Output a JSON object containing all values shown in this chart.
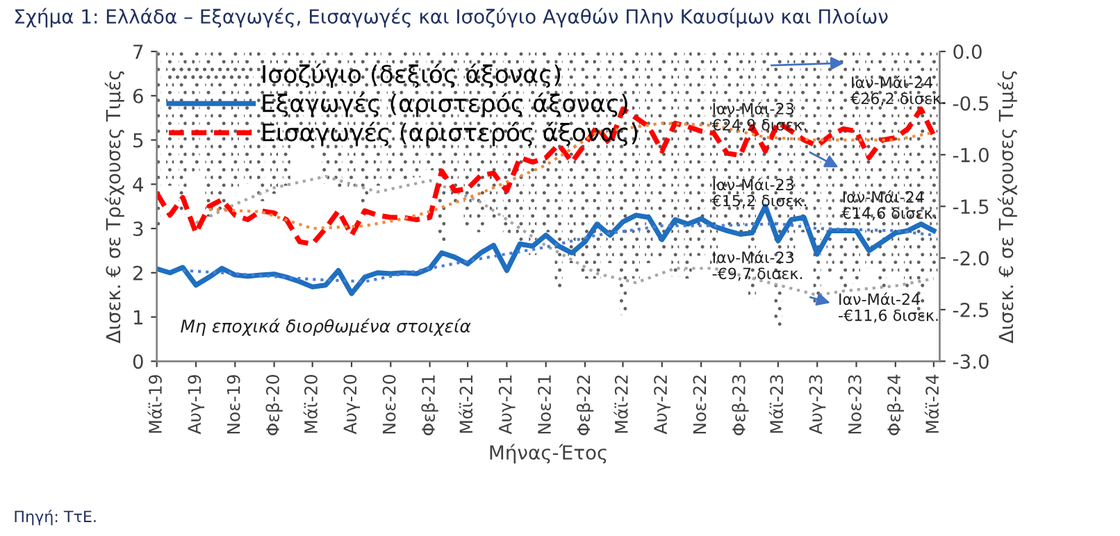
{
  "chart_data": {
    "type": "line",
    "title": "Σχήμα 1: Ελλάδα – Εξαγωγές, Εισαγωγές και Ισοζύγιο Αγαθών Πλην Καυσίμων και Πλοίων",
    "xlabel": "Μήνας-Έτος",
    "ylabel": "Δισεκ. € σε Τρέχουσες Τιμές",
    "y2label": "Δισεκ. € σε Τρέχουσες Τιμές",
    "x": [
      "2019-05",
      "2019-06",
      "2019-07",
      "2019-08",
      "2019-09",
      "2019-10",
      "2019-11",
      "2019-12",
      "2020-01",
      "2020-02",
      "2020-03",
      "2020-04",
      "2020-05",
      "2020-06",
      "2020-07",
      "2020-08",
      "2020-09",
      "2020-10",
      "2020-11",
      "2020-12",
      "2021-01",
      "2021-02",
      "2021-03",
      "2021-04",
      "2021-05",
      "2021-06",
      "2021-07",
      "2021-08",
      "2021-09",
      "2021-10",
      "2021-11",
      "2021-12",
      "2022-01",
      "2022-02",
      "2022-03",
      "2022-04",
      "2022-05",
      "2022-06",
      "2022-07",
      "2022-08",
      "2022-09",
      "2022-10",
      "2022-11",
      "2022-12",
      "2023-01",
      "2023-02",
      "2023-03",
      "2023-04",
      "2023-05",
      "2023-06",
      "2023-07",
      "2023-08",
      "2023-09",
      "2023-10",
      "2023-11",
      "2023-12",
      "2024-01",
      "2024-02",
      "2024-03",
      "2024-04",
      "2024-05"
    ],
    "xlim": [
      "2019-05",
      "2024-05-15"
    ],
    "xticks": [
      {
        "value": "2019-05",
        "label": "Μάϊ-19"
      },
      {
        "value": "2019-08",
        "label": "Αυγ-19"
      },
      {
        "value": "2019-11",
        "label": "Νοε-19"
      },
      {
        "value": "2020-02",
        "label": "Φεβ-20"
      },
      {
        "value": "2020-05",
        "label": "Μάϊ-20"
      },
      {
        "value": "2020-08",
        "label": "Αυγ-20"
      },
      {
        "value": "2020-11",
        "label": "Νοε-20"
      },
      {
        "value": "2021-02",
        "label": "Φεβ-21"
      },
      {
        "value": "2021-05",
        "label": "Μάϊ-21"
      },
      {
        "value": "2021-08",
        "label": "Αυγ-21"
      },
      {
        "value": "2021-11",
        "label": "Νοε-21"
      },
      {
        "value": "2022-02",
        "label": "Φεβ-22"
      },
      {
        "value": "2022-05",
        "label": "Μάϊ-22"
      },
      {
        "value": "2022-08",
        "label": "Αυγ-22"
      },
      {
        "value": "2022-11",
        "label": "Νοε-22"
      },
      {
        "value": "2023-02",
        "label": "Φεβ-23"
      },
      {
        "value": "2023-05",
        "label": "Μάϊ-23"
      },
      {
        "value": "2023-08",
        "label": "Αυγ-23"
      },
      {
        "value": "2023-11",
        "label": "Νοε-23"
      },
      {
        "value": "2024-02",
        "label": "Φεβ-24"
      },
      {
        "value": "2024-05",
        "label": "Μάϊ-24"
      }
    ],
    "ylim": [
      0,
      7
    ],
    "yticks": [
      0,
      1,
      2,
      3,
      4,
      5,
      6,
      7
    ],
    "y2lim": [
      -3.0,
      0.0
    ],
    "y2ticks": [
      {
        "value": -3,
        "label": "-3.0"
      },
      {
        "value": -2.5,
        "label": "-2.5"
      },
      {
        "value": -2,
        "label": "-2.0"
      },
      {
        "value": -1.5,
        "label": "-1.5"
      },
      {
        "value": -1,
        "label": "-1.0"
      },
      {
        "value": -0.5,
        "label": "-0.5"
      },
      {
        "value": 0,
        "label": "0.0"
      }
    ],
    "legend": "top left",
    "grid": false,
    "annotations": [
      "Ιαν-Μάι-23\n€24,9 δισεκ.",
      "Ιαν-Μάι-24\n€26,2 δισεκ.",
      "Ιαν-Μάι-23\n€15,2 δισεκ.",
      "Ιαν-Μάι-24\n€14,6 δισεκ.",
      "Ιαν-Μάι-23\n-€9,7 δισεκ.",
      "Ιαν-Μάι-24\n-€11,6 δισεκ.",
      "Μη εποχικά διορθωμένα στοιχεία",
      "Πηγή: ΤτΕ."
    ],
    "series": [
      {
        "name": "Ισοζύγιο (δεξιός άξονας)",
        "type": "bar",
        "axis": "y2",
        "color": "#606060",
        "values": [
          -1.71,
          -1.3,
          -1.58,
          -1.18,
          -1.6,
          -1.55,
          -1.35,
          -1.28,
          -1.45,
          -1.38,
          -1.3,
          -0.9,
          -0.97,
          -1.28,
          -1.35,
          -1.32,
          -1.5,
          -1.3,
          -1.27,
          -1.25,
          -1.22,
          -1.15,
          -1.85,
          -1.5,
          -1.7,
          -1.75,
          -1.63,
          -1.8,
          -1.95,
          -1.97,
          -1.75,
          -2.3,
          -2.05,
          -2.2,
          -2.2,
          -2.05,
          -2.55,
          -2.2,
          -2.05,
          -2.0,
          -2.18,
          -2.2,
          -1.98,
          -2.1,
          -1.75,
          -1.78,
          -2.4,
          -1.25,
          -2.68,
          -2.0,
          -1.75,
          -2.45,
          -2.15,
          -2.3,
          -2.25,
          -2.1,
          -2.3,
          -2.15,
          -2.3,
          -2.6,
          -2.15
        ]
      },
      {
        "name": "Εξαγωγές (αριστερός άξονας)",
        "line_style": "solid",
        "color": "#1f6fc0",
        "values": [
          2.09,
          2.0,
          2.12,
          1.72,
          1.9,
          2.1,
          1.95,
          1.92,
          1.95,
          1.97,
          1.9,
          1.8,
          1.68,
          1.72,
          2.05,
          1.53,
          1.9,
          2.0,
          1.98,
          2.0,
          1.98,
          2.1,
          2.45,
          2.35,
          2.2,
          2.45,
          2.62,
          2.05,
          2.65,
          2.6,
          2.85,
          2.6,
          2.45,
          2.7,
          3.1,
          2.85,
          3.15,
          3.3,
          3.25,
          2.75,
          3.2,
          3.1,
          3.22,
          3.05,
          2.95,
          2.87,
          2.9,
          3.5,
          2.72,
          3.2,
          3.25,
          2.42,
          2.95,
          2.95,
          2.95,
          2.5,
          2.7,
          2.9,
          2.95,
          3.1,
          2.95
        ]
      },
      {
        "name": "Εισαγωγές (αριστερός άξονας)",
        "line_style": "dashed",
        "color": "#ff0000",
        "values": [
          3.8,
          3.3,
          3.7,
          2.9,
          3.5,
          3.65,
          3.3,
          3.2,
          3.4,
          3.35,
          3.2,
          2.7,
          2.65,
          3.0,
          3.4,
          2.85,
          3.4,
          3.3,
          3.25,
          3.25,
          3.2,
          3.25,
          4.3,
          3.85,
          3.9,
          4.2,
          4.25,
          3.85,
          4.6,
          4.5,
          4.6,
          4.9,
          4.5,
          4.9,
          5.3,
          4.9,
          5.7,
          5.5,
          5.3,
          4.75,
          5.38,
          5.3,
          5.2,
          5.15,
          4.7,
          4.65,
          5.3,
          4.75,
          5.4,
          5.2,
          5.0,
          4.87,
          5.1,
          5.25,
          5.2,
          4.6,
          5.0,
          5.05,
          5.25,
          5.7,
          5.1
        ]
      },
      {
        "line_style": "dotted",
        "axis": "y2",
        "color": "#a6a6a6",
        "x": [
          "2019-08",
          "2019-11",
          "2020-02",
          "2020-06",
          "2020-10",
          "2021-02",
          "2021-06",
          "2021-11",
          "2022-03",
          "2022-06",
          "2022-09",
          "2022-12",
          "2023-08",
          "2023-10",
          "2024-02",
          "2024-05"
        ],
        "values": [
          -1.66,
          -1.48,
          -1.32,
          -1.21,
          -1.36,
          -1.25,
          -1.46,
          -1.88,
          -2.15,
          -2.24,
          -2.1,
          -2.1,
          -2.36,
          -2.32,
          -2.27,
          -2.2
        ]
      },
      {
        "line_style": "dotted",
        "color": "#f08a3c",
        "x": [
          "2019-09",
          "2020-01",
          "2020-05",
          "2020-09",
          "2020-12",
          "2021-02",
          "2021-06",
          "2021-11",
          "2022-03",
          "2022-08",
          "2022-12",
          "2023-04",
          "2023-08",
          "2024-02",
          "2024-05"
        ],
        "values": [
          3.43,
          3.38,
          3.0,
          3.06,
          3.22,
          3.38,
          3.8,
          4.43,
          5.17,
          5.38,
          5.33,
          5.06,
          5.0,
          5.0,
          5.17
        ]
      },
      {
        "line_style": "dotted",
        "color": "#4a7fd6",
        "x": [
          "2019-07",
          "2019-10",
          "2020-05",
          "2020-09",
          "2021-02",
          "2021-06",
          "2021-11",
          "2022-03",
          "2022-08",
          "2022-12",
          "2023-05",
          "2023-08",
          "2024-02",
          "2024-05"
        ],
        "values": [
          2.05,
          2.0,
          1.85,
          1.8,
          2.1,
          2.32,
          2.58,
          2.85,
          3.06,
          3.06,
          3.11,
          3.0,
          2.95,
          2.85
        ]
      }
    ]
  }
}
